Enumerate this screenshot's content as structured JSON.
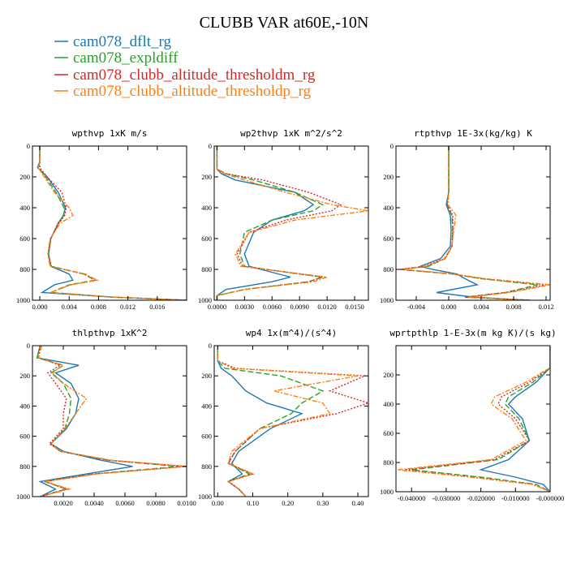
{
  "title": "CLUBB VAR at60E,-10N",
  "legend": [
    {
      "label": "cam078_dflt_rg",
      "color": "#1f77b4"
    },
    {
      "label": "cam078_expldiff",
      "color": "#2ca02c"
    },
    {
      "label": "cam078_clubb_altitude_thresholdm_rg",
      "color": "#d62728"
    },
    {
      "label": "cam078_clubb_altitude_thresholdp_rg",
      "color": "#ff7f0e"
    }
  ],
  "chart_data": [
    {
      "type": "line",
      "title": "wpthvp   1xK m/s",
      "xlim": [
        -0.001,
        0.02
      ],
      "ylim": [
        1000,
        0
      ],
      "xticks": [
        0.0,
        0.004,
        0.008,
        0.012,
        0.016
      ],
      "xtick_labels": [
        "0.000",
        "0.004",
        "0.008",
        "0.012",
        "0.016"
      ],
      "yticks": [
        0,
        200,
        400,
        600,
        800,
        1000
      ],
      "ytick_labels": [
        "0",
        "200",
        "400",
        "600",
        "800",
        "1000"
      ],
      "y": [
        0,
        100,
        140,
        200,
        300,
        400,
        450,
        500,
        600,
        700,
        780,
        830,
        870,
        900,
        950,
        980,
        1000
      ],
      "series": [
        {
          "name": "cam078_dflt_rg",
          "color": "#1f77b4",
          "values": [
            0.0,
            0.0,
            -0.0003,
            0.001,
            0.0025,
            0.0035,
            0.0032,
            0.0025,
            0.0015,
            0.0012,
            0.0015,
            0.004,
            0.0045,
            0.002,
            0.0003,
            0.01,
            0.02
          ]
        },
        {
          "name": "cam078_expldiff",
          "color": "#2ca02c",
          "values": [
            0.0,
            0.0,
            -0.0002,
            0.0008,
            0.0022,
            0.0033,
            0.0033,
            0.0025,
            0.0015,
            0.0012,
            0.0015,
            0.006,
            0.0075,
            0.004,
            0.0015,
            0.01,
            0.02
          ]
        },
        {
          "name": "cam078_clubb_altitude_thresholdm_rg",
          "color": "#d62728",
          "values": [
            0.0,
            0.0,
            0.0,
            0.001,
            0.003,
            0.0036,
            0.0034,
            0.0026,
            0.0015,
            0.0011,
            0.0016,
            0.006,
            0.0078,
            0.0042,
            0.0015,
            0.01,
            0.02
          ]
        },
        {
          "name": "cam078_clubb_altitude_thresholdp_rg",
          "color": "#ff7f0e",
          "values": [
            0.0,
            0.0,
            -0.0002,
            0.0006,
            0.002,
            0.004,
            0.0045,
            0.0028,
            0.0014,
            0.0011,
            0.0014,
            0.0062,
            0.0078,
            0.0042,
            0.0015,
            0.01,
            0.02
          ]
        }
      ]
    },
    {
      "type": "line",
      "title": "wp2thvp   1xK m^2/s^2",
      "xlim": [
        -0.0003,
        0.0165
      ],
      "ylim": [
        1000,
        0
      ],
      "xticks": [
        0.0,
        0.003,
        0.006,
        0.009,
        0.012,
        0.015
      ],
      "xtick_labels": [
        "0.0000",
        "0.0030",
        "0.0060",
        "0.0090",
        "0.0120",
        "0.0150"
      ],
      "yticks": [
        0,
        200,
        400,
        600,
        800,
        1000
      ],
      "ytick_labels": [
        "0",
        "200",
        "400",
        "600",
        "800",
        "1000"
      ],
      "y": [
        0,
        150,
        180,
        220,
        300,
        380,
        420,
        480,
        560,
        700,
        780,
        850,
        880,
        930,
        970,
        1000
      ],
      "series": [
        {
          "name": "cam078_dflt_rg",
          "color": "#1f77b4",
          "values": [
            0.0,
            0.0,
            0.0005,
            0.002,
            0.0085,
            0.0105,
            0.0095,
            0.006,
            0.004,
            0.003,
            0.0035,
            0.008,
            0.006,
            0.001,
            0.0,
            0.0
          ]
        },
        {
          "name": "cam078_expldiff",
          "color": "#2ca02c",
          "values": [
            0.0,
            0.0,
            0.001,
            0.004,
            0.0085,
            0.0115,
            0.0105,
            0.006,
            0.003,
            0.0025,
            0.003,
            0.0115,
            0.01,
            0.003,
            0.0,
            0.0
          ]
        },
        {
          "name": "cam078_clubb_altitude_thresholdm_rg",
          "color": "#d62728",
          "values": [
            0.0,
            0.0,
            0.001,
            0.005,
            0.01,
            0.0135,
            0.0125,
            0.0075,
            0.0035,
            0.0022,
            0.0028,
            0.0115,
            0.01,
            0.003,
            0.0,
            0.0
          ]
        },
        {
          "name": "cam078_clubb_altitude_thresholdp_rg",
          "color": "#ff7f0e",
          "values": [
            0.0,
            0.0,
            0.0008,
            0.003,
            0.0075,
            0.0125,
            0.0165,
            0.0085,
            0.0035,
            0.002,
            0.0026,
            0.012,
            0.0105,
            0.003,
            0.0,
            0.0
          ]
        }
      ]
    },
    {
      "type": "line",
      "title": "rtpthvp   1E-3x(kg/kg) K",
      "xlim": [
        -0.0065,
        0.0125
      ],
      "ylim": [
        1000,
        0
      ],
      "xticks": [
        -0.004,
        0.0,
        0.004,
        0.008,
        0.012
      ],
      "xtick_labels": [
        "-0.004",
        "0.000",
        "0.004",
        "0.008",
        "0.012"
      ],
      "yticks": [
        0,
        200,
        400,
        600,
        800,
        1000
      ],
      "ytick_labels": [
        "0",
        "200",
        "400",
        "600",
        "800",
        "1000"
      ],
      "y": [
        0,
        300,
        380,
        450,
        550,
        650,
        730,
        780,
        800,
        830,
        860,
        900,
        950,
        980,
        1000
      ],
      "series": [
        {
          "name": "cam078_dflt_rg",
          "color": "#1f77b4",
          "values": [
            0.0,
            0.0,
            -0.0003,
            0.0002,
            0.0003,
            0.0002,
            -0.001,
            -0.0035,
            -0.002,
            0.001,
            0.002,
            0.0035,
            -0.0015,
            0.003,
            0.01
          ]
        },
        {
          "name": "cam078_expldiff",
          "color": "#2ca02c",
          "values": [
            0.0,
            0.0,
            -0.0002,
            0.0004,
            0.0005,
            0.0004,
            -0.0005,
            -0.0025,
            -0.006,
            0.0005,
            0.004,
            0.011,
            0.007,
            0.002,
            0.01
          ]
        },
        {
          "name": "cam078_clubb_altitude_thresholdm_rg",
          "color": "#d62728",
          "values": [
            0.0,
            0.0,
            -0.0002,
            0.0005,
            0.0005,
            0.0004,
            -0.0005,
            -0.003,
            -0.006,
            0.0005,
            0.004,
            0.012,
            0.007,
            0.002,
            0.01
          ]
        },
        {
          "name": "cam078_clubb_altitude_thresholdp_rg",
          "color": "#ff7f0e",
          "values": [
            0.0,
            0.0,
            -0.0001,
            0.0009,
            0.0006,
            0.0004,
            -0.0004,
            -0.0028,
            -0.0055,
            0.0006,
            0.0045,
            0.0125,
            0.0075,
            0.0025,
            0.01
          ]
        }
      ]
    },
    {
      "type": "line",
      "title": "thlpthvp   1xK^2",
      "xlim": [
        0.0,
        0.01
      ],
      "ylim": [
        1000,
        0
      ],
      "xticks": [
        0.002,
        0.004,
        0.006,
        0.008,
        0.01
      ],
      "xtick_labels": [
        "0.0020",
        "0.0040",
        "0.0060",
        "0.0080",
        "0.0100"
      ],
      "yticks": [
        0,
        200,
        400,
        600,
        800,
        1000
      ],
      "ytick_labels": [
        "0",
        "200",
        "400",
        "600",
        "800",
        "1000"
      ],
      "y": [
        0,
        80,
        130,
        180,
        250,
        350,
        450,
        550,
        650,
        700,
        760,
        800,
        850,
        900,
        950,
        1000
      ],
      "series": [
        {
          "name": "cam078_dflt_rg",
          "color": "#1f77b4",
          "values": [
            0.0005,
            0.0003,
            0.003,
            0.0015,
            0.0025,
            0.003,
            0.0028,
            0.0022,
            0.0012,
            0.002,
            0.0045,
            0.0065,
            0.0035,
            0.0005,
            0.0015,
            0.0005
          ]
        },
        {
          "name": "cam078_expldiff",
          "color": "#2ca02c",
          "values": [
            0.0005,
            0.0003,
            0.002,
            0.0012,
            0.002,
            0.0025,
            0.0024,
            0.0021,
            0.0012,
            0.0018,
            0.005,
            0.0095,
            0.004,
            0.0008,
            0.0022,
            0.0005
          ]
        },
        {
          "name": "cam078_clubb_altitude_thresholdm_rg",
          "color": "#d62728",
          "values": [
            0.0005,
            0.0004,
            0.0018,
            0.001,
            0.0015,
            0.0022,
            0.002,
            0.002,
            0.0011,
            0.0018,
            0.005,
            0.01,
            0.004,
            0.0008,
            0.0022,
            0.0005
          ]
        },
        {
          "name": "cam078_clubb_altitude_thresholdp_rg",
          "color": "#ff7f0e",
          "values": [
            0.0006,
            0.0004,
            0.002,
            0.0013,
            0.002,
            0.0035,
            0.0028,
            0.0021,
            0.0012,
            0.0018,
            0.0052,
            0.01,
            0.0042,
            0.0008,
            0.0024,
            0.0005
          ]
        }
      ]
    },
    {
      "type": "line",
      "title": "wp4   1x(m^4)/(s^4)",
      "xlim": [
        -0.01,
        0.43
      ],
      "ylim": [
        1000,
        0
      ],
      "xticks": [
        0.0,
        0.1,
        0.2,
        0.3,
        0.4
      ],
      "xtick_labels": [
        "0.00",
        "0.10",
        "0.20",
        "0.30",
        "0.40"
      ],
      "yticks": [
        0,
        200,
        400,
        600,
        800,
        1000
      ],
      "ytick_labels": [
        "0",
        "200",
        "400",
        "600",
        "800",
        "1000"
      ],
      "y": [
        0,
        100,
        150,
        200,
        300,
        380,
        450,
        550,
        700,
        780,
        850,
        900,
        950,
        1000
      ],
      "series": [
        {
          "name": "cam078_dflt_rg",
          "color": "#1f77b4",
          "values": [
            0.0,
            0.0,
            0.01,
            0.04,
            0.08,
            0.14,
            0.24,
            0.15,
            0.06,
            0.04,
            0.07,
            0.03,
            0.06,
            0.08
          ]
        },
        {
          "name": "cam078_expldiff",
          "color": "#2ca02c",
          "values": [
            0.0,
            0.0,
            0.02,
            0.18,
            0.3,
            0.24,
            0.21,
            0.12,
            0.05,
            0.03,
            0.09,
            0.03,
            0.06,
            0.08
          ]
        },
        {
          "name": "cam078_clubb_altitude_thresholdm_rg",
          "color": "#d62728",
          "values": [
            0.0,
            0.0,
            0.05,
            0.42,
            0.32,
            0.43,
            0.34,
            0.12,
            0.05,
            0.03,
            0.1,
            0.03,
            0.06,
            0.08
          ]
        },
        {
          "name": "cam078_clubb_altitude_thresholdp_rg",
          "color": "#ff7f0e",
          "values": [
            0.0,
            0.0,
            0.04,
            0.4,
            0.16,
            0.3,
            0.32,
            0.12,
            0.04,
            0.03,
            0.1,
            0.03,
            0.06,
            0.08
          ]
        }
      ]
    },
    {
      "type": "line",
      "title": "wprtpthlp   1-E-3x(m kg K)/(s kg)",
      "xlim": [
        -0.0445,
        0.0
      ],
      "ylim": [
        1000,
        0
      ],
      "xticks": [
        -0.04,
        -0.03,
        -0.02,
        -0.01,
        0.0
      ],
      "xtick_labels": [
        "-0.040000",
        "-0.030000",
        "-0.020000",
        "-0.010000",
        "-0.000000"
      ],
      "yticks": [
        200,
        400,
        600,
        800,
        1000
      ],
      "ytick_labels": [
        "200",
        "400",
        "600",
        "800",
        "1000"
      ],
      "y": [
        0,
        150,
        250,
        350,
        400,
        500,
        650,
        780,
        850,
        900,
        950,
        1000
      ],
      "series": [
        {
          "name": "cam078_dflt_rg",
          "color": "#1f77b4",
          "values": [
            0.0,
            0.0,
            -0.004,
            -0.01,
            -0.012,
            -0.008,
            -0.006,
            -0.012,
            -0.02,
            -0.01,
            -0.002,
            0.0
          ]
        },
        {
          "name": "cam078_expldiff",
          "color": "#2ca02c",
          "values": [
            0.0,
            0.0,
            -0.005,
            -0.012,
            -0.013,
            -0.009,
            -0.006,
            -0.015,
            -0.04,
            -0.02,
            -0.004,
            0.0
          ]
        },
        {
          "name": "cam078_clubb_altitude_thresholdm_rg",
          "color": "#d62728",
          "values": [
            0.0,
            0.0,
            -0.006,
            -0.014,
            -0.015,
            -0.01,
            -0.006,
            -0.016,
            -0.042,
            -0.022,
            -0.005,
            0.0
          ]
        },
        {
          "name": "cam078_clubb_altitude_thresholdp_rg",
          "color": "#ff7f0e",
          "values": [
            0.0,
            0.0,
            -0.007,
            -0.016,
            -0.017,
            -0.011,
            -0.007,
            -0.017,
            -0.044,
            -0.023,
            -0.005,
            0.0
          ]
        }
      ]
    }
  ]
}
